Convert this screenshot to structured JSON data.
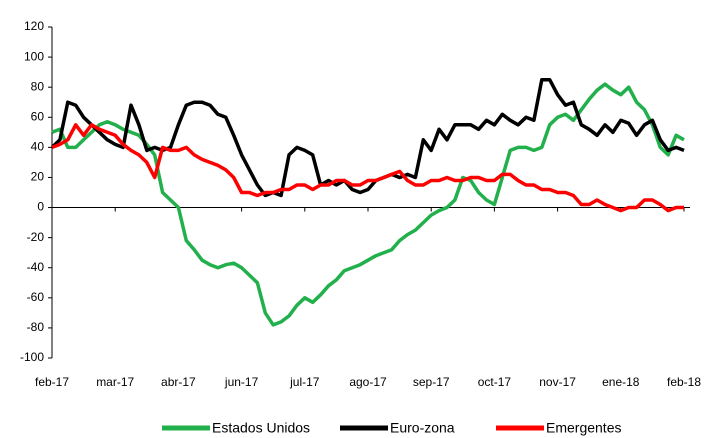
{
  "chart_data": {
    "type": "line",
    "categories": [
      "feb-17",
      null,
      null,
      null,
      null,
      null,
      null,
      null,
      "mar-17",
      null,
      null,
      null,
      null,
      null,
      null,
      null,
      "abr-17",
      null,
      null,
      null,
      null,
      null,
      null,
      null,
      "jun-17",
      null,
      null,
      null,
      null,
      null,
      null,
      null,
      "jul-17",
      null,
      null,
      null,
      null,
      null,
      null,
      null,
      "ago-17",
      null,
      null,
      null,
      null,
      null,
      null,
      null,
      "sep-17",
      null,
      null,
      null,
      null,
      null,
      null,
      null,
      "oct-17",
      null,
      null,
      null,
      null,
      null,
      null,
      null,
      "nov-17",
      null,
      null,
      null,
      null,
      null,
      null,
      null,
      "ene-18",
      null,
      null,
      null,
      null,
      null,
      null,
      null,
      "feb-18"
    ],
    "series": [
      {
        "name": "Estados Unidos",
        "color": "#21b04b",
        "values": [
          50,
          52,
          40,
          40,
          45,
          50,
          55,
          57,
          55,
          52,
          50,
          48,
          42,
          35,
          10,
          5,
          0,
          -22,
          -28,
          -35,
          -38,
          -40,
          -38,
          -37,
          -40,
          -45,
          -50,
          -70,
          -78,
          -76,
          -72,
          -65,
          -60,
          -63,
          -58,
          -52,
          -48,
          -42,
          -40,
          -38,
          -35,
          -32,
          -30,
          -28,
          -22,
          -18,
          -15,
          -10,
          -5,
          -2,
          0,
          5,
          20,
          18,
          10,
          5,
          2,
          20,
          38,
          40,
          40,
          38,
          40,
          55,
          60,
          62,
          58,
          65,
          72,
          78,
          82,
          78,
          75,
          80,
          70,
          65,
          55,
          40,
          35,
          48,
          45
        ]
      },
      {
        "name": "Euro-zona",
        "color": "#000000",
        "values": [
          40,
          45,
          70,
          68,
          60,
          55,
          50,
          45,
          42,
          40,
          68,
          55,
          38,
          40,
          38,
          40,
          55,
          68,
          70,
          70,
          68,
          62,
          60,
          48,
          35,
          25,
          15,
          8,
          10,
          8,
          35,
          40,
          38,
          35,
          15,
          18,
          15,
          18,
          12,
          10,
          12,
          18,
          20,
          22,
          20,
          22,
          20,
          45,
          38,
          52,
          45,
          55,
          55,
          55,
          52,
          58,
          55,
          62,
          58,
          55,
          60,
          58,
          85,
          85,
          75,
          68,
          70,
          55,
          52,
          48,
          55,
          50,
          58,
          56,
          48,
          55,
          58,
          45,
          38,
          40,
          38
        ]
      },
      {
        "name": "Emergentes",
        "color": "#ff0000",
        "values": [
          40,
          42,
          45,
          55,
          48,
          55,
          52,
          50,
          48,
          42,
          38,
          35,
          30,
          20,
          40,
          38,
          38,
          40,
          35,
          32,
          30,
          28,
          25,
          20,
          10,
          10,
          8,
          10,
          10,
          12,
          12,
          15,
          15,
          12,
          15,
          15,
          18,
          18,
          15,
          15,
          18,
          18,
          20,
          22,
          24,
          18,
          15,
          15,
          18,
          18,
          20,
          18,
          18,
          20,
          20,
          18,
          18,
          22,
          22,
          18,
          15,
          15,
          12,
          12,
          10,
          10,
          8,
          2,
          2,
          5,
          2,
          0,
          -2,
          0,
          0,
          5,
          5,
          2,
          -2,
          0,
          0
        ]
      }
    ],
    "ylim": [
      -100,
      120
    ],
    "yticks": [
      -100,
      -80,
      -60,
      -40,
      -20,
      0,
      20,
      40,
      60,
      80,
      100,
      120
    ]
  }
}
